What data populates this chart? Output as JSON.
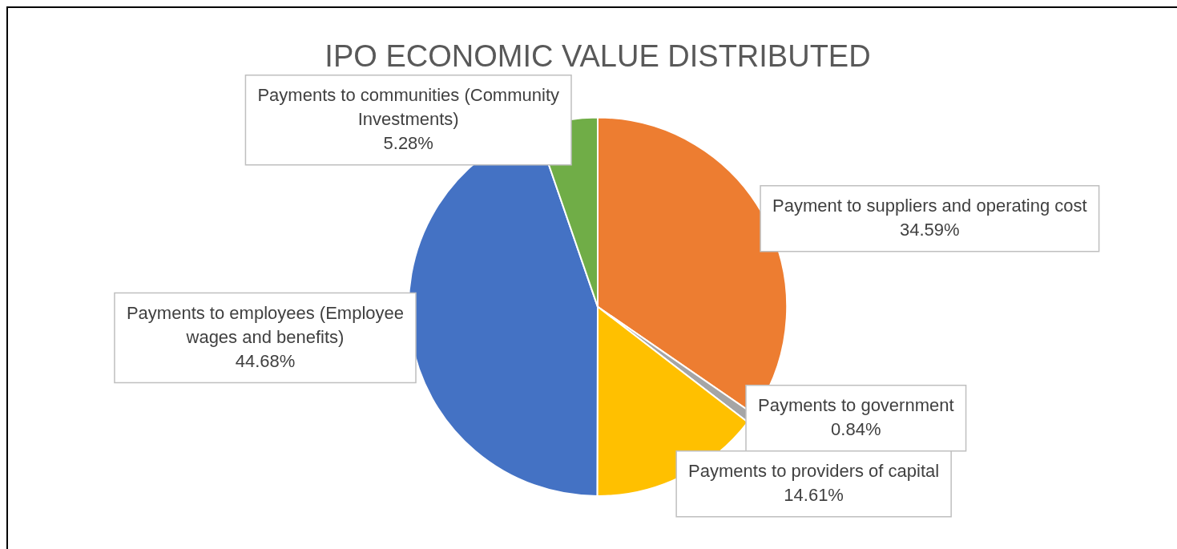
{
  "chart_data": {
    "type": "pie",
    "title": "IPO ECONOMIC VALUE DISTRIBUTED",
    "categories": [
      "Payment to suppliers and operating cost",
      "Payments to government",
      "Payments to providers of capital",
      "Payments to employees (Employee wages and benefits)",
      "Payments to communities (Community Investments)"
    ],
    "values": [
      34.59,
      0.84,
      14.61,
      44.68,
      5.28
    ],
    "value_labels": [
      "34.59%",
      "0.84%",
      "14.61%",
      "44.68%",
      "5.28%"
    ],
    "colors": [
      "#ed7d31",
      "#a5a5a5",
      "#ffc000",
      "#4472c4",
      "#70ad47"
    ],
    "legend": false
  }
}
